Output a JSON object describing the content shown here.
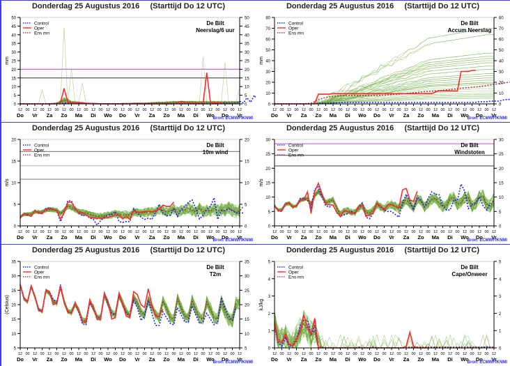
{
  "common": {
    "title": "Donderdag 25 Augustus 2016     (Starttijd Do 12 UTC)",
    "source": "Bron: ECMWF/KNMI",
    "legend": [
      {
        "label": "Control",
        "color": "#2020ff",
        "style": "dotted"
      },
      {
        "label": "Oper",
        "color": "#ff2a2a",
        "style": "solid"
      },
      {
        "label": "Ens mn",
        "color": "#a04040",
        "style": "dotted"
      }
    ],
    "x_ticks": [
      "12",
      "00",
      "12",
      "00",
      "12",
      "00",
      "12",
      "00",
      "12",
      "00",
      "12",
      "00",
      "12",
      "00",
      "12",
      "00",
      "12",
      "00",
      "12",
      "00",
      "12",
      "00",
      "12",
      "00",
      "12",
      "00",
      "12",
      "00",
      "12",
      "00",
      "12"
    ],
    "x_days": [
      "Do",
      "Vr",
      "Za",
      "Zo",
      "Ma",
      "Di",
      "Wo",
      "Do",
      "Vr",
      "Za",
      "Zo",
      "Ma",
      "Di",
      "Wo",
      "Do",
      "Vr"
    ],
    "colors": {
      "ensemble": "#6aaa3a",
      "control": "#2020ff",
      "oper": "#ff2a2a",
      "ensmean": "#a04040",
      "border": "#3b3bff",
      "threshold": "#cc66dd"
    }
  },
  "chart_data": [
    {
      "type": "line",
      "id": "neerslag",
      "location": "De Bilt",
      "variable": "Neerslag/6 uur",
      "ylabel": "mm",
      "ylim": [
        0,
        50
      ],
      "yticks": [
        0,
        5,
        10,
        15,
        20,
        25,
        30,
        35,
        40,
        45,
        50
      ],
      "hlines": [
        {
          "y": 20,
          "color": "#cc66dd"
        },
        {
          "y": 15,
          "color": "#444"
        }
      ],
      "oper": [
        0,
        0,
        0,
        0,
        0,
        0,
        0,
        0,
        0,
        0,
        0,
        0.5,
        9,
        1,
        0.5,
        0.5,
        0.8,
        0.6,
        0.4,
        0.3,
        0.3,
        0.2,
        0,
        0,
        0,
        0,
        0,
        0,
        0,
        0,
        0,
        0,
        0,
        0,
        0,
        0,
        0,
        0,
        0,
        0,
        0,
        0,
        0,
        0.5,
        1.5,
        1,
        0.5,
        0.2,
        0.3,
        0.3,
        0.5,
        18,
        1,
        0.5,
        0.5,
        0.8
      ],
      "control": [
        0,
        0,
        0,
        0,
        0,
        0,
        0,
        0,
        0,
        0,
        0,
        0,
        0.5,
        0.5,
        0.2,
        0.5,
        0.3,
        0.3,
        0.2,
        0.1,
        0,
        0,
        0,
        0,
        0,
        0,
        0,
        0,
        0,
        0,
        0,
        0,
        0,
        0,
        0,
        0,
        0,
        0,
        0,
        0,
        0,
        0,
        0,
        0,
        0,
        0,
        0,
        0,
        0,
        0,
        0,
        0,
        0,
        0,
        0,
        0.2,
        0.5,
        0.3,
        0,
        0.5,
        1.5,
        0.5,
        3.5,
        1,
        5,
        1.5,
        0.5,
        0.3,
        0.2,
        0.3,
        0.5,
        0.5,
        0.5,
        0.5,
        0.5,
        2,
        4,
        1,
        0.5
      ],
      "ensmean": [
        0,
        0,
        0,
        0,
        0,
        0,
        0,
        0,
        0.1,
        0.2,
        0.4,
        1,
        2,
        1.5,
        0.8,
        0.7,
        0.6,
        0.5,
        0.3,
        0.2,
        0.1,
        0.1,
        0.1,
        0.1,
        0.1,
        0.1,
        0.1,
        0.1,
        0.2,
        0.2,
        0.2,
        0.3,
        0.3,
        0.3,
        0.3,
        0.4,
        0.5,
        0.5,
        0.6,
        0.6,
        0.7,
        0.7,
        0.8,
        0.8,
        0.8,
        0.8,
        0.8,
        0.8,
        0.8,
        0.8,
        0.8,
        0.8,
        0.8,
        0.8,
        0.8,
        0.8,
        0.8,
        0.8,
        0.8,
        0.8,
        0.8
      ],
      "ens_peaks": [
        {
          "t": 12,
          "v": 44
        },
        {
          "t": 14,
          "v": 20
        },
        {
          "t": 17,
          "v": 12
        },
        {
          "t": 6,
          "v": 8
        },
        {
          "t": 50,
          "v": 27
        },
        {
          "t": 56,
          "v": 24
        },
        {
          "t": 72,
          "v": 12
        },
        {
          "t": 78,
          "v": 10
        },
        {
          "t": 60,
          "v": 9
        }
      ]
    },
    {
      "type": "line",
      "id": "accum",
      "location": "De Bilt",
      "variable": "Accum Neerslag",
      "ylabel": "mm",
      "ylim": [
        0,
        80
      ],
      "yticks": [
        0,
        10,
        20,
        30,
        40,
        50,
        60,
        70,
        80
      ],
      "hlines": [],
      "oper": [
        0,
        0,
        0,
        0,
        0,
        0,
        0,
        0,
        0,
        0,
        0,
        0.5,
        9,
        9,
        9,
        9,
        9.5,
        9.5,
        9.5,
        9.5,
        9.5,
        9.5,
        9.5,
        9.5,
        9.5,
        9.5,
        9.5,
        9.5,
        9.5,
        9.5,
        9.5,
        9.5,
        9.5,
        9.5,
        9.5,
        9.5,
        9.5,
        9.5,
        9.5,
        9.5,
        9.5,
        9.5,
        9.5,
        9.5,
        11,
        12,
        12,
        12,
        12,
        12,
        12,
        30,
        30,
        30,
        31,
        31
      ],
      "control": [
        0,
        0,
        0,
        0,
        0,
        0,
        0,
        0,
        0,
        0,
        0,
        0,
        0.5,
        0.5,
        0.5,
        0.8,
        1,
        1,
        1.2,
        1.3,
        1.3,
        1.3,
        1.3,
        1.3,
        1.3,
        1.3,
        1.3,
        1.3,
        1.3,
        1.3,
        1.3,
        1.3,
        1.3,
        1.3,
        1.3,
        1.3,
        1.3,
        1.3,
        1.3,
        1.3,
        1.3,
        1.3,
        1.3,
        1.3,
        1.3,
        1.3,
        1.3,
        1.3,
        1.3,
        1.3,
        1.3,
        1.3,
        1.3,
        1.3,
        1.3,
        1.5,
        2,
        2,
        2,
        2.5,
        2.5,
        2.5,
        3,
        4,
        4,
        5,
        8,
        8,
        13,
        13,
        13.5,
        13.5,
        13.5,
        13.5,
        13.5,
        13.5,
        13.5,
        14,
        17,
        20,
        20,
        20
      ],
      "ensmean": [
        0,
        0,
        0,
        0,
        0,
        0,
        0,
        0,
        0.1,
        0.3,
        0.7,
        2,
        4,
        5,
        6,
        6.5,
        7,
        7.3,
        7.5,
        7.6,
        7.7,
        7.7,
        7.8,
        7.8,
        7.8,
        7.8,
        7.8,
        7.8,
        7.9,
        8,
        8.2,
        8.4,
        8.6,
        8.8,
        9,
        9.3,
        9.6,
        10,
        10.3,
        10.6,
        10.9,
        11.2,
        11.5,
        11.8,
        12,
        12.3,
        12.6,
        13,
        13.3,
        13.6,
        14,
        14.3,
        14.7,
        15,
        15.3,
        15.7,
        16,
        16.5,
        17,
        17.5,
        18,
        18.5,
        19,
        19.5,
        20,
        20.5,
        21
      ],
      "ens_final": [
        70,
        64,
        47,
        44,
        42,
        40,
        38,
        35,
        32,
        28,
        26,
        24,
        22,
        20,
        19,
        18,
        16,
        14,
        12,
        10,
        9,
        8,
        7,
        6,
        5
      ]
    },
    {
      "type": "line",
      "id": "wind10m",
      "location": "De Bilt",
      "variable": "10m wind",
      "ylabel": "m/s",
      "ylim": [
        0,
        20
      ],
      "yticks": [
        0,
        5,
        10,
        15,
        20
      ],
      "hlines": [
        {
          "y": 17.2,
          "color": "#888"
        },
        {
          "y": 13.9,
          "color": "#bbb"
        },
        {
          "y": 10.8,
          "color": "#888"
        }
      ],
      "oper": [
        1.8,
        2.8,
        2.7,
        2.2,
        3.5,
        3,
        2.8,
        3.8,
        4,
        3.8,
        3.5,
        1.6,
        3,
        5.5,
        5.5,
        4,
        3,
        3,
        2.5,
        2,
        1.8,
        1.8,
        1.8,
        1.8,
        2,
        2.2,
        2.5,
        2.5,
        1.6,
        2.2,
        1.5,
        3.5,
        3.2,
        3.2,
        3.3,
        3.3,
        3.3,
        3.5,
        3.8,
        4.8,
        4.5,
        4.5,
        5.5
      ],
      "control": [
        1.8,
        2.8,
        2.5,
        2.2,
        3.5,
        3,
        2.8,
        4,
        4.2,
        3.8,
        3.5,
        1,
        3,
        5.8,
        5.8,
        4,
        3,
        2.3,
        2.5,
        1.8,
        1.5,
        0.2,
        1.2,
        2,
        2.5,
        2.7,
        3.3,
        1,
        0.8,
        1,
        1,
        4,
        3,
        2,
        1.5,
        1.8,
        1.5,
        3.2,
        5,
        3,
        2.3,
        2.5,
        4,
        2.2,
        3.8,
        4.5,
        5.5,
        6,
        4,
        1.6,
        2.5,
        3.8,
        4.5,
        6.5,
        1.5,
        3.5,
        3.5,
        4,
        3.5,
        3,
        3,
        3
      ],
      "ensmean": [
        2,
        2.7,
        2.7,
        2.8,
        3.3,
        3.2,
        3.2,
        3.6,
        3.8,
        3.7,
        3.6,
        2.8,
        3.5,
        4.5,
        4.3,
        3.8,
        3.3,
        3.1,
        2.9,
        2.6,
        2.4,
        2.2,
        2.2,
        2.3,
        2.5,
        2.6,
        2.8,
        2.7,
        2.5,
        2.6,
        2.5,
        3.2,
        3,
        3,
        3.1,
        3.2,
        3.2,
        3.3,
        3.8,
        3.6,
        3.3,
        3.4,
        4,
        3.2,
        3.6,
        3.7,
        4.2,
        3.6,
        3.2,
        4,
        3.3,
        3.6,
        3.5,
        4,
        3.5,
        3.7,
        3.5,
        4.2,
        3.6,
        3.2,
        3.4,
        4.5
      ]
    },
    {
      "type": "line",
      "id": "windstoten",
      "location": "De Bilt",
      "variable": "Windstoten",
      "ylabel": "m/s",
      "ylim": [
        0,
        30
      ],
      "yticks": [
        0,
        5,
        10,
        15,
        20,
        25,
        30
      ],
      "hlines": [
        {
          "y": 28.5,
          "color": "#cc66dd"
        },
        {
          "y": 24.5,
          "color": "#666"
        },
        {
          "y": 20.8,
          "color": "#666"
        }
      ],
      "oper": [
        7,
        5.2,
        5.2,
        7.5,
        8,
        6.5,
        7,
        9,
        9,
        11.8,
        4.3,
        12,
        14.8,
        11,
        7.5,
        7.3,
        7.2,
        4.8,
        3.2,
        5.2,
        5,
        4.3,
        4.3,
        6.8,
        7.2,
        3.3,
        3.8,
        4.5,
        7.8,
        6.8,
        5.5,
        7.3,
        7.3,
        6.7,
        6.3,
        12.5,
        13,
        9,
        8.5,
        12
      ],
      "control": [
        7,
        5.2,
        5,
        7.8,
        7.8,
        6.5,
        7,
        9.5,
        9.5,
        9,
        6.3,
        12.8,
        13.5,
        10,
        7,
        6.5,
        7.5,
        4.5,
        3.4,
        3.8,
        4.2,
        5,
        4.2,
        6.8,
        8,
        3,
        2.5,
        4.5,
        7.8,
        6.5,
        5.5,
        5,
        5,
        4,
        3,
        8,
        11,
        8.5,
        5.5,
        10,
        9,
        6.5,
        9.5,
        11.8,
        11,
        10.8,
        7,
        5.5,
        5.5,
        9,
        8.8,
        14.5,
        12,
        6,
        7.5,
        8,
        10,
        7,
        5.5,
        8
      ],
      "ensmean": [
        7,
        5.5,
        5.6,
        7.5,
        7.8,
        6.7,
        7,
        8.8,
        9.3,
        9.5,
        7.5,
        10.5,
        12,
        10.5,
        8,
        8.5,
        9,
        6.2,
        4,
        5,
        5.3,
        4.8,
        4.6,
        6,
        7,
        4.5,
        4.5,
        5.5,
        7.5,
        6.7,
        6,
        7.2,
        7.5,
        6.8,
        6,
        7.5,
        9,
        7.8,
        6.5,
        9.2,
        8.8,
        6.5,
        7.8,
        9.2,
        9.6,
        8,
        6.7,
        7,
        9.5,
        9.8,
        7.5,
        8,
        9.8,
        10,
        7,
        7.5,
        10,
        10.2,
        7.5,
        7,
        9
      ]
    },
    {
      "type": "line",
      "id": "t2m",
      "location": "De Bilt",
      "variable": "T2m",
      "ylabel": "(Celsius)",
      "ylim": [
        5,
        35
      ],
      "yticks": [
        5,
        10,
        15,
        20,
        25,
        30,
        35
      ],
      "hlines": [],
      "oper": [
        27,
        22.5,
        21,
        26.5,
        23,
        18.5,
        17.5,
        25,
        24.5,
        20,
        20.5,
        26.5,
        21,
        17.5,
        17,
        20.5,
        18,
        14,
        13.8,
        21.5,
        19,
        15,
        15,
        24,
        21,
        15,
        15.5,
        24,
        20,
        16,
        15.5,
        24.5,
        23.5,
        20,
        19,
        25.5,
        20,
        16,
        16,
        18.5
      ],
      "control": [
        27,
        22.5,
        21,
        26.5,
        23,
        18,
        17.5,
        25,
        24.5,
        22,
        20.5,
        27,
        21,
        17.5,
        17,
        20.5,
        17.5,
        13.2,
        13,
        21,
        18.5,
        15.5,
        15.5,
        24,
        20,
        17,
        16.5,
        23.5,
        20,
        17,
        16,
        21.5,
        19,
        14.5,
        16,
        21.5,
        17,
        12.8,
        12.8,
        17.5,
        15.5,
        13.5,
        13,
        19,
        16.5,
        14,
        14,
        19.5,
        16.5,
        13.5,
        14,
        17,
        15,
        13,
        14,
        22.5,
        19,
        16,
        14.5,
        19
      ],
      "ensmean": [
        27,
        22,
        21,
        26.3,
        22.8,
        18.3,
        17.7,
        24.7,
        24,
        21,
        20.5,
        26,
        21,
        17.7,
        17.3,
        20.3,
        18,
        14.5,
        14.3,
        21.2,
        19,
        15.5,
        15.5,
        23.5,
        20.5,
        17,
        16.5,
        23.3,
        20.5,
        17.5,
        16.5,
        22.5,
        20.5,
        17.5,
        16.5,
        21.5,
        19,
        16.5,
        15.5,
        21.3,
        18.5,
        15.5,
        15,
        22,
        19,
        16,
        15.5,
        21.5,
        18.5,
        15.5,
        15,
        21,
        18.5,
        15.5,
        15,
        21,
        17.5,
        15,
        14.5,
        20.5
      ]
    },
    {
      "type": "line",
      "id": "cape",
      "location": "De Bilt",
      "variable": "Cape/Onweer",
      "ylabel": "kJ/kg",
      "ylim": [
        0,
        5
      ],
      "yticks": [
        0,
        1,
        2,
        3,
        4,
        5
      ],
      "hlines": [],
      "oper": [
        1.5,
        0.4,
        0.3,
        0.8,
        0.2,
        0.1,
        0.5,
        0.9,
        1.9,
        1.2,
        0.8,
        1.7,
        0,
        0,
        0,
        0,
        0,
        0,
        0,
        0,
        0,
        0,
        0,
        0,
        0,
        0,
        0,
        0,
        0,
        0,
        0,
        0,
        0,
        0,
        0,
        0,
        0.1,
        0.9,
        0.1,
        0,
        0,
        0,
        0
      ],
      "control": [
        1.3,
        0.3,
        0.1,
        0.6,
        0.1,
        0.1,
        0.4,
        1.3,
        1.6,
        1.6,
        0.7,
        1.3,
        0,
        0,
        0,
        0,
        0,
        0,
        0,
        0,
        0,
        0,
        0,
        0.05,
        0,
        0,
        0,
        0.05,
        0,
        0,
        0,
        0,
        0,
        0,
        0,
        0,
        0,
        0,
        0,
        0,
        0,
        0,
        0,
        0,
        0,
        0,
        0,
        0,
        0,
        0,
        0,
        0,
        0,
        0,
        0,
        0,
        0,
        0,
        0.05,
        0
      ],
      "ensmean": [
        1.4,
        0.5,
        0.4,
        0.6,
        0.2,
        0.2,
        0.6,
        1,
        1.4,
        1.1,
        0.8,
        1,
        0.1,
        0.05,
        0.02,
        0,
        0,
        0,
        0,
        0,
        0,
        0,
        0,
        0,
        0,
        0,
        0,
        0,
        0,
        0,
        0,
        0,
        0,
        0,
        0,
        0,
        0.02,
        0.05,
        0.05,
        0.05,
        0.05,
        0.05,
        0.05,
        0.05,
        0.05,
        0.05,
        0.05,
        0.05,
        0.05,
        0.05,
        0.05,
        0.05,
        0.05,
        0.05,
        0.05,
        0.05,
        0.05,
        0.05,
        0.05,
        0.05,
        0.05
      ]
    }
  ]
}
